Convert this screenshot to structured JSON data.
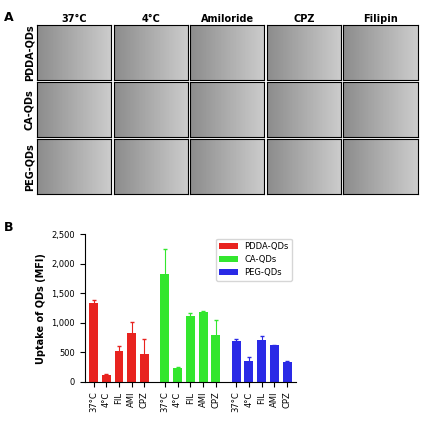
{
  "panel_labels": [
    "A",
    "B"
  ],
  "image_grid": {
    "columns": [
      "37°C",
      "4°C",
      "Amiloride",
      "CPZ",
      "Filipin"
    ],
    "rows": [
      "PDDA-QDs",
      "CA-QDs",
      "PEG-QDs"
    ]
  },
  "chart_data": {
    "type": "bar",
    "ylabel": "Uptake of QDs (MFI)",
    "ylim": [
      0,
      2500
    ],
    "yticks": [
      0,
      500,
      {
        "value": 1000,
        "label": "1,000"
      },
      {
        "value": 1500,
        "label": "1,500"
      },
      {
        "value": 2000,
        "label": "2,000"
      },
      {
        "value": 2500,
        "label": "2,500"
      }
    ],
    "legend": "upper right",
    "series": [
      {
        "name": "PDDA-QDs",
        "color": "#e8231f",
        "categories": [
          "37°C",
          "4°C",
          "FIL",
          "AMI",
          "CPZ"
        ],
        "values": [
          1330,
          120,
          530,
          830,
          480
        ],
        "errors": [
          50,
          10,
          80,
          180,
          250
        ]
      },
      {
        "name": "CA-QDs",
        "color": "#33e62e",
        "categories": [
          "37°C",
          "4°C",
          "FIL",
          "AMI",
          "CPZ"
        ],
        "values": [
          1820,
          230,
          1110,
          1190,
          800
        ],
        "errors": [
          430,
          20,
          60,
          20,
          250
        ]
      },
      {
        "name": "PEG-QDs",
        "color": "#2a2ae6",
        "categories": [
          "37°C",
          "4°C",
          "FIL",
          "AMI",
          "CPZ"
        ],
        "values": [
          690,
          360,
          710,
          620,
          340
        ],
        "errors": [
          30,
          60,
          60,
          10,
          20
        ]
      }
    ]
  }
}
